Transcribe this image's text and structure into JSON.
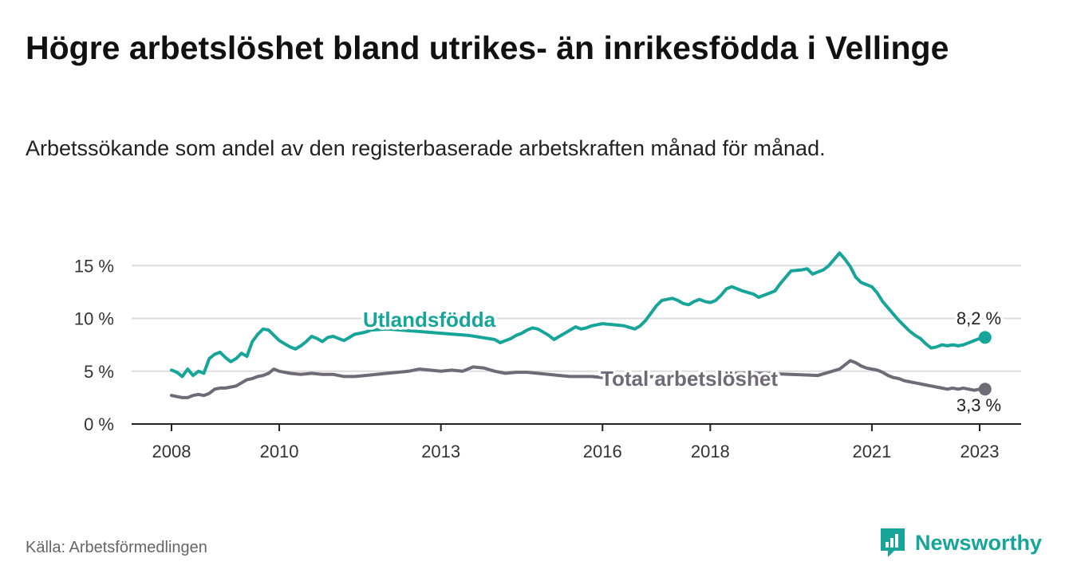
{
  "title": "Högre arbetslöshet bland utrikes- än inrikesfödda i Vellinge",
  "subtitle": "Arbetssökande som andel av den registerbaserade arbetskraften månad för månad.",
  "source": "Källa: Arbetsförmedlingen",
  "brand": {
    "name": "Newsworthy",
    "icon": "newsworthy-logo-icon"
  },
  "colors": {
    "utlandsfodda": "#17a59a",
    "total": "#6e6b77",
    "grid": "#dddddd",
    "axis": "#222222"
  },
  "chart_data": {
    "type": "line",
    "title": "Högre arbetslöshet bland utrikes- än inrikesfödda i Vellinge",
    "xlabel": "",
    "ylabel": "",
    "xlim": [
      2008,
      2023.8
    ],
    "ylim": [
      0,
      17
    ],
    "yticks": [
      {
        "value": 0,
        "label": "0 %"
      },
      {
        "value": 5,
        "label": "5 %"
      },
      {
        "value": 10,
        "label": "10 %"
      },
      {
        "value": 15,
        "label": "15 %"
      }
    ],
    "xticks": [
      {
        "value": 2008,
        "label": "2008"
      },
      {
        "value": 2010,
        "label": "2010"
      },
      {
        "value": 2013,
        "label": "2013"
      },
      {
        "value": 2016,
        "label": "2016"
      },
      {
        "value": 2018,
        "label": "2018"
      },
      {
        "value": 2021,
        "label": "2021"
      },
      {
        "value": 2023,
        "label": "2023"
      }
    ],
    "series": [
      {
        "name": "Utlandsfödda",
        "label": "Utlandsfödda",
        "end_label": "8,2 %",
        "end_value": 8.2,
        "x": [
          2008.0,
          2008.1,
          2008.2,
          2008.3,
          2008.4,
          2008.5,
          2008.6,
          2008.7,
          2008.8,
          2008.9,
          2009.0,
          2009.1,
          2009.2,
          2009.3,
          2009.4,
          2009.5,
          2009.6,
          2009.7,
          2009.8,
          2009.9,
          2010.0,
          2010.1,
          2010.2,
          2010.3,
          2010.4,
          2010.5,
          2010.6,
          2010.7,
          2010.8,
          2010.9,
          2011.0,
          2011.1,
          2011.2,
          2011.3,
          2011.4,
          2011.5,
          2011.6,
          2011.7,
          2012.0,
          2012.5,
          2013.0,
          2013.5,
          2014.0,
          2014.1,
          2014.2,
          2014.3,
          2014.4,
          2014.5,
          2014.6,
          2014.7,
          2014.8,
          2014.9,
          2015.0,
          2015.1,
          2015.2,
          2015.3,
          2015.4,
          2015.5,
          2015.6,
          2015.7,
          2015.8,
          2015.9,
          2016.0,
          2016.2,
          2016.4,
          2016.6,
          2016.7,
          2016.8,
          2016.9,
          2017.0,
          2017.1,
          2017.2,
          2017.3,
          2017.4,
          2017.5,
          2017.6,
          2017.7,
          2017.8,
          2017.9,
          2018.0,
          2018.1,
          2018.2,
          2018.3,
          2018.4,
          2018.5,
          2018.6,
          2018.8,
          2018.9,
          2019.0,
          2019.2,
          2019.3,
          2019.5,
          2019.7,
          2019.8,
          2019.9,
          2020.0,
          2020.1,
          2020.2,
          2020.3,
          2020.4,
          2020.5,
          2020.6,
          2020.7,
          2020.8,
          2020.9,
          2021.0,
          2021.1,
          2021.2,
          2021.3,
          2021.4,
          2021.5,
          2021.6,
          2021.7,
          2021.8,
          2021.9,
          2022.0,
          2022.1,
          2022.2,
          2022.3,
          2022.4,
          2022.5,
          2022.6,
          2022.7,
          2022.8,
          2022.9,
          2023.0,
          2023.1
        ],
        "values": [
          5.1,
          4.9,
          4.5,
          5.2,
          4.6,
          5.0,
          4.8,
          6.2,
          6.6,
          6.8,
          6.3,
          5.9,
          6.2,
          6.7,
          6.4,
          7.8,
          8.5,
          9.0,
          8.9,
          8.4,
          7.9,
          7.6,
          7.3,
          7.1,
          7.4,
          7.8,
          8.3,
          8.1,
          7.8,
          8.2,
          8.3,
          8.1,
          7.9,
          8.2,
          8.5,
          8.6,
          8.7,
          8.9,
          9.0,
          8.8,
          8.6,
          8.4,
          8.0,
          7.7,
          7.9,
          8.1,
          8.4,
          8.6,
          8.9,
          9.1,
          9.0,
          8.7,
          8.4,
          8.0,
          8.3,
          8.6,
          8.9,
          9.2,
          9.0,
          9.1,
          9.3,
          9.4,
          9.5,
          9.4,
          9.3,
          9.0,
          9.3,
          9.8,
          10.5,
          11.2,
          11.7,
          11.8,
          11.9,
          11.7,
          11.4,
          11.3,
          11.6,
          11.8,
          11.6,
          11.5,
          11.7,
          12.2,
          12.8,
          13.0,
          12.8,
          12.6,
          12.3,
          12.0,
          12.2,
          12.6,
          13.3,
          14.5,
          14.6,
          14.7,
          14.2,
          14.4,
          14.6,
          15.0,
          15.6,
          16.2,
          15.6,
          14.9,
          13.9,
          13.4,
          13.2,
          13.0,
          12.4,
          11.6,
          11.0,
          10.4,
          9.8,
          9.3,
          8.8,
          8.4,
          8.1,
          7.6,
          7.2,
          7.3,
          7.5,
          7.4,
          7.5,
          7.4,
          7.5,
          7.7,
          7.9,
          8.1,
          8.2
        ]
      },
      {
        "name": "Total arbetslöshet",
        "label": "Total arbetslöshet",
        "end_label": "3,3 %",
        "end_value": 3.3,
        "x": [
          2008.0,
          2008.1,
          2008.2,
          2008.3,
          2008.4,
          2008.5,
          2008.6,
          2008.7,
          2008.8,
          2008.9,
          2009.0,
          2009.1,
          2009.2,
          2009.3,
          2009.4,
          2009.5,
          2009.6,
          2009.7,
          2009.8,
          2009.9,
          2010.0,
          2010.2,
          2010.4,
          2010.6,
          2010.8,
          2011.0,
          2011.2,
          2011.4,
          2011.6,
          2011.8,
          2012.0,
          2012.2,
          2012.4,
          2012.6,
          2012.8,
          2013.0,
          2013.2,
          2013.4,
          2013.6,
          2013.8,
          2014.0,
          2014.2,
          2014.4,
          2014.6,
          2014.8,
          2015.0,
          2015.2,
          2015.4,
          2015.6,
          2015.8,
          2016.0,
          2016.5,
          2017.0,
          2017.5,
          2018.0,
          2018.5,
          2019.0,
          2019.5,
          2020.0,
          2020.2,
          2020.4,
          2020.5,
          2020.6,
          2020.7,
          2020.8,
          2020.9,
          2021.0,
          2021.1,
          2021.2,
          2021.3,
          2021.4,
          2021.5,
          2021.6,
          2021.7,
          2021.8,
          2021.9,
          2022.0,
          2022.1,
          2022.2,
          2022.3,
          2022.4,
          2022.5,
          2022.6,
          2022.7,
          2022.8,
          2022.9,
          2023.0,
          2023.1
        ],
        "values": [
          2.7,
          2.6,
          2.5,
          2.5,
          2.7,
          2.8,
          2.7,
          2.9,
          3.3,
          3.4,
          3.4,
          3.5,
          3.6,
          3.9,
          4.2,
          4.3,
          4.5,
          4.6,
          4.8,
          5.2,
          5.0,
          4.8,
          4.7,
          4.8,
          4.7,
          4.7,
          4.5,
          4.5,
          4.6,
          4.7,
          4.8,
          4.9,
          5.0,
          5.2,
          5.1,
          5.0,
          5.1,
          5.0,
          5.4,
          5.3,
          5.0,
          4.8,
          4.9,
          4.9,
          4.8,
          4.7,
          4.6,
          4.5,
          4.5,
          4.5,
          4.4,
          4.4,
          4.5,
          4.6,
          4.7,
          4.8,
          4.8,
          4.7,
          4.6,
          4.9,
          5.2,
          5.6,
          6.0,
          5.8,
          5.5,
          5.3,
          5.2,
          5.1,
          4.9,
          4.6,
          4.4,
          4.3,
          4.1,
          4.0,
          3.9,
          3.8,
          3.7,
          3.6,
          3.5,
          3.4,
          3.3,
          3.4,
          3.3,
          3.4,
          3.3,
          3.2,
          3.3,
          3.3
        ]
      }
    ]
  }
}
